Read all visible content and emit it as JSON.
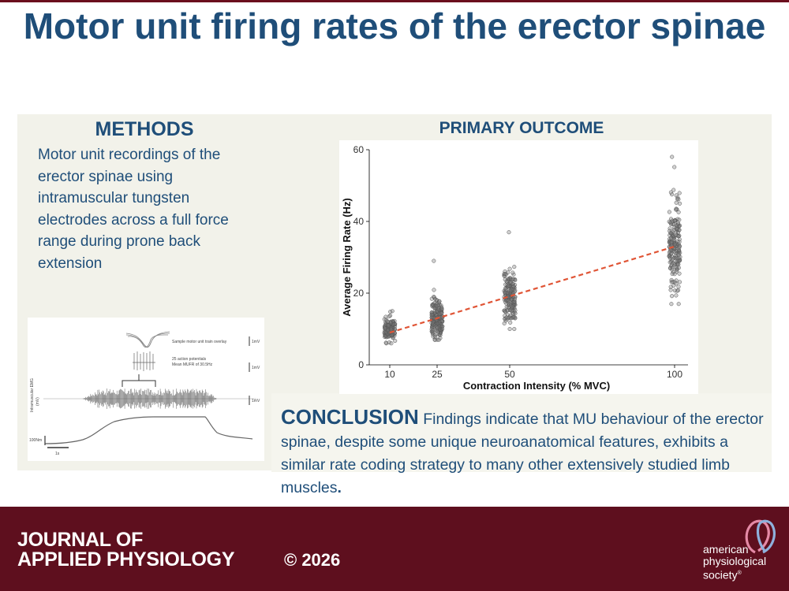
{
  "title": "Motor unit firing rates of the erector spinae",
  "methods": {
    "heading": "METHODS",
    "body": "Motor unit recordings of the erector spinae using intramuscular tungsten electrodes across a full force range during prone back extension"
  },
  "emg_figure": {
    "overlay_label": "Sample motor unit train overlay",
    "ap_label_1": "25 action potentials",
    "ap_label_2": "Mean MUFR of 30.5Hz",
    "scale_1": "1mV",
    "scale_2": "1mV",
    "scale_3": "1mV",
    "y_label_1": "Intramuscular EMG",
    "y_label_2": "(mV)",
    "force_label": "100Nm",
    "time_label": "1s"
  },
  "primary_outcome": {
    "heading": "PRIMARY OUTCOME"
  },
  "chart_data": {
    "type": "scatter",
    "xlabel": "Contraction Intensity (% MVC)",
    "ylabel": "Average Firing Rate (Hz)",
    "x_ticks": [
      10,
      25,
      50,
      100
    ],
    "y_ticks": [
      0,
      20,
      40,
      60
    ],
    "ylim": [
      0,
      60
    ],
    "groups": [
      {
        "x": 10,
        "mean": 10,
        "sd": 1.6,
        "min": 6,
        "max": 15,
        "n": 140
      },
      {
        "x": 25,
        "mean": 13,
        "sd": 2.6,
        "min": 7,
        "max": 29,
        "n": 190
      },
      {
        "x": 50,
        "mean": 19,
        "sd": 3.6,
        "min": 10,
        "max": 37,
        "n": 180
      },
      {
        "x": 100,
        "mean": 33,
        "sd": 6.5,
        "min": 17,
        "max": 58,
        "n": 190
      }
    ],
    "trendline": {
      "x": [
        10,
        100
      ],
      "y": [
        9,
        33
      ],
      "color": "#e05536",
      "style": "dashed"
    },
    "point_color": "#555555",
    "grid": false
  },
  "conclusion": {
    "heading": "CONCLUSION",
    "body": "Findings indicate that MU behaviour of the erector spinae, despite some unique neuroanatomical features, exhibits a similar rate coding strategy to many other extensively studied limb muscles",
    "end": "."
  },
  "footer": {
    "journal_line1": "JOURNAL OF",
    "journal_line2": "APPLIED PHYSIOLOGY",
    "copyright": "© 2026",
    "aps_line1": "american",
    "aps_line2": "physiological",
    "aps_line3": "society",
    "aps_mark": "®",
    "colors": {
      "footer": "#5e0f1e",
      "logo_pink": "#e58aa6",
      "logo_blue": "#8fb1dc"
    }
  }
}
